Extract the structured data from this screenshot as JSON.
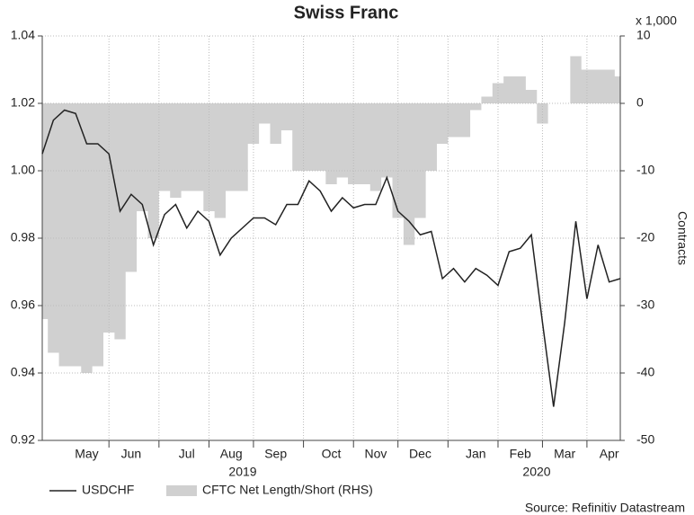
{
  "chart_data": {
    "type": "line",
    "title": "Swiss Franc",
    "categories": [
      null,
      null,
      null,
      null,
      "May",
      null,
      null,
      null,
      "Jun",
      null,
      null,
      null,
      null,
      "Jul",
      null,
      null,
      null,
      "Aug",
      null,
      null,
      null,
      "Sep",
      null,
      null,
      null,
      null,
      "Oct",
      null,
      null,
      null,
      "Nov",
      null,
      null,
      null,
      "Dec",
      null,
      null,
      null,
      null,
      "Jan",
      null,
      null,
      null,
      "Feb",
      null,
      null,
      null,
      "Mar",
      null,
      null,
      null,
      "Apr",
      null
    ],
    "year_labels": [
      "2019",
      "2020"
    ],
    "series": [
      {
        "name": "USDCHF",
        "color": "#222222",
        "axis": "y",
        "values": [
          1.005,
          1.015,
          1.018,
          1.017,
          1.008,
          1.008,
          1.005,
          0.988,
          0.993,
          0.99,
          0.978,
          0.987,
          0.99,
          0.983,
          0.988,
          0.985,
          0.975,
          0.98,
          0.983,
          0.986,
          0.986,
          0.984,
          0.99,
          0.99,
          0.997,
          0.994,
          0.988,
          0.992,
          0.989,
          0.99,
          0.99,
          0.998,
          0.988,
          0.985,
          0.981,
          0.982,
          0.968,
          0.971,
          0.967,
          0.971,
          0.969,
          0.966,
          0.976,
          0.977,
          0.981,
          0.955,
          0.93,
          0.955,
          0.985,
          0.962,
          0.978,
          0.967,
          0.968
        ]
      },
      {
        "name": "CFTC Net Length/Short (RHS)",
        "color": "#d0d0d0",
        "axis": "y2",
        "type": "area",
        "values": [
          -32,
          -37,
          -39,
          -39,
          -40,
          -39,
          -34,
          -35,
          -25,
          -16,
          -20,
          -13,
          -14,
          -13,
          -13,
          -16,
          -17,
          -13,
          -13,
          -6,
          -3,
          -6,
          -4,
          -10,
          -10,
          -10,
          -12,
          -11,
          -12,
          -12,
          -13,
          -11,
          -17,
          -21,
          -17,
          -10,
          -6,
          -5,
          -5,
          -1,
          1,
          3,
          4,
          4,
          2,
          -3,
          0,
          0,
          7,
          5,
          5,
          5,
          4
        ]
      }
    ],
    "ylim": [
      0.92,
      1.04
    ],
    "yticks": [
      0.92,
      0.94,
      0.96,
      0.98,
      {
        "value": 1,
        "label": "1.00"
      },
      1.02,
      1.04
    ],
    "y2lim": [
      -50,
      10
    ],
    "y2ticks": [
      -50,
      -40,
      -30,
      -20,
      -10,
      0,
      10
    ],
    "y2_unit": "x 1,000",
    "y2_label": "Contracts",
    "grid": true,
    "source": "Source: Refinitiv Datastream"
  }
}
